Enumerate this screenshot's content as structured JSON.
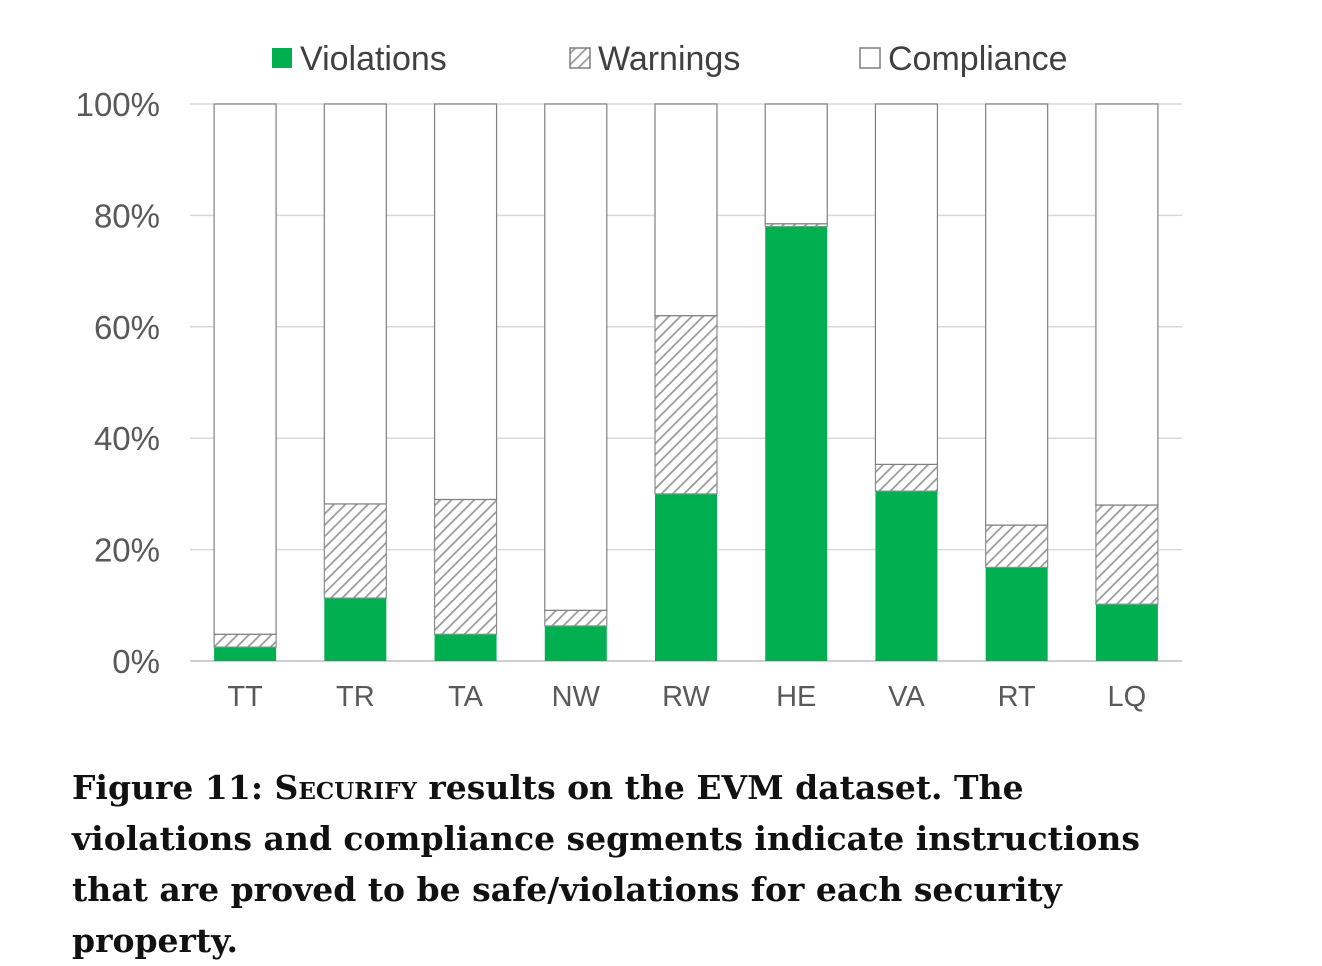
{
  "chart_data": {
    "type": "bar",
    "stacked": true,
    "normalized": true,
    "categories": [
      "TT",
      "TR",
      "TA",
      "NW",
      "RW",
      "HE",
      "VA",
      "RT",
      "LQ"
    ],
    "series": [
      {
        "name": "Violations",
        "values": [
          2.5,
          11.3,
          4.8,
          6.3,
          30.0,
          78.0,
          30.5,
          16.8,
          10.2
        ],
        "color": "#00b050",
        "fill": "solid"
      },
      {
        "name": "Warnings",
        "values": [
          2.3,
          16.9,
          24.2,
          2.8,
          32.0,
          0.5,
          4.8,
          7.6,
          17.8
        ],
        "color": "#a6a6a6",
        "fill": "hatch"
      },
      {
        "name": "Compliance",
        "values": [
          95.2,
          71.8,
          71.0,
          90.9,
          38.0,
          21.5,
          64.7,
          75.6,
          72.0
        ],
        "color": "#ffffff",
        "fill": "outline"
      }
    ],
    "ylim": [
      0,
      100
    ],
    "yticks": [
      "0%",
      "20%",
      "40%",
      "60%",
      "80%",
      "100%"
    ],
    "grid": true,
    "legend": "top",
    "title": "",
    "xlabel": "",
    "ylabel": ""
  },
  "caption": {
    "label": "Figure 11:",
    "tool": "Securify",
    "text": "results on the EVM dataset. The violations and compliance segments indicate instructions that are proved to be safe/violations for each security property."
  }
}
